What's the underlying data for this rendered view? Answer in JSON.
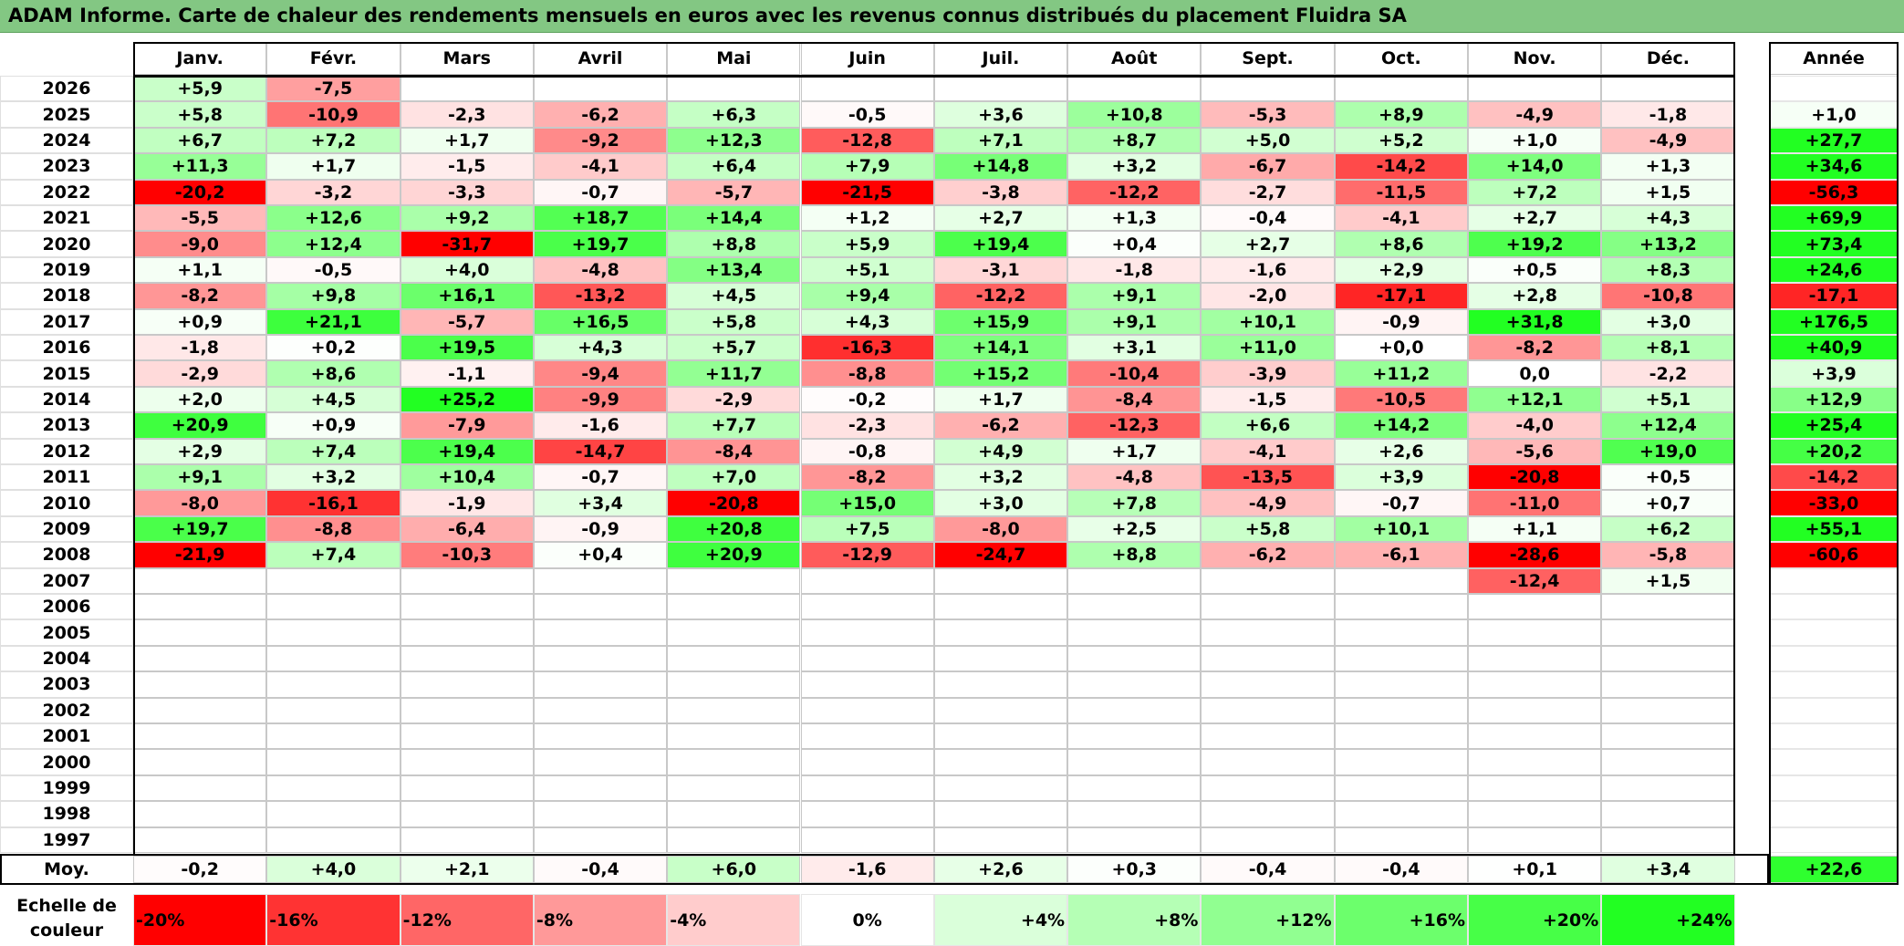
{
  "title": "ADAM Informe. Carte de chaleur des rendements mensuels en euros avec les revenus connus distribués du placement Fluidra SA",
  "chart_data": {
    "type": "heatmap",
    "title": "ADAM Informe. Carte de chaleur des rendements mensuels en euros avec les revenus connus distribués du placement Fluidra SA",
    "months": [
      "Janv.",
      "Févr.",
      "Mars",
      "Avril",
      "Mai",
      "Juin",
      "Juil.",
      "Août",
      "Sept.",
      "Oct.",
      "Nov.",
      "Déc."
    ],
    "year_header": "Année",
    "years": [
      "2026",
      "2025",
      "2024",
      "2023",
      "2022",
      "2021",
      "2020",
      "2019",
      "2018",
      "2017",
      "2016",
      "2015",
      "2014",
      "2013",
      "2012",
      "2011",
      "2010",
      "2009",
      "2008",
      "2007",
      "2006",
      "2005",
      "2004",
      "2003",
      "2002",
      "2001",
      "2000",
      "1999",
      "1998",
      "1997"
    ],
    "values": [
      [
        "+5,9",
        "-7,5",
        "",
        "",
        "",
        "",
        "",
        "",
        "",
        "",
        "",
        ""
      ],
      [
        "+5,8",
        "-10,9",
        "-2,3",
        "-6,2",
        "+6,3",
        "-0,5",
        "+3,6",
        "+10,8",
        "-5,3",
        "+8,9",
        "-4,9",
        "-1,8"
      ],
      [
        "+6,7",
        "+7,2",
        "+1,7",
        "-9,2",
        "+12,3",
        "-12,8",
        "+7,1",
        "+8,7",
        "+5,0",
        "+5,2",
        "+1,0",
        "-4,9"
      ],
      [
        "+11,3",
        "+1,7",
        "-1,5",
        "-4,1",
        "+6,4",
        "+7,9",
        "+14,8",
        "+3,2",
        "-6,7",
        "-14,2",
        "+14,0",
        "+1,3"
      ],
      [
        "-20,2",
        "-3,2",
        "-3,3",
        "-0,7",
        "-5,7",
        "-21,5",
        "-3,8",
        "-12,2",
        "-2,7",
        "-11,5",
        "+7,2",
        "+1,5"
      ],
      [
        "-5,5",
        "+12,6",
        "+9,2",
        "+18,7",
        "+14,4",
        "+1,2",
        "+2,7",
        "+1,3",
        "-0,4",
        "-4,1",
        "+2,7",
        "+4,3"
      ],
      [
        "-9,0",
        "+12,4",
        "-31,7",
        "+19,7",
        "+8,8",
        "+5,9",
        "+19,4",
        "+0,4",
        "+2,7",
        "+8,6",
        "+19,2",
        "+13,2"
      ],
      [
        "+1,1",
        "-0,5",
        "+4,0",
        "-4,8",
        "+13,4",
        "+5,1",
        "-3,1",
        "-1,8",
        "-1,6",
        "+2,9",
        "+0,5",
        "+8,3"
      ],
      [
        "-8,2",
        "+9,8",
        "+16,1",
        "-13,2",
        "+4,5",
        "+9,4",
        "-12,2",
        "+9,1",
        "-2,0",
        "-17,1",
        "+2,8",
        "-10,8"
      ],
      [
        "+0,9",
        "+21,1",
        "-5,7",
        "+16,5",
        "+5,8",
        "+4,3",
        "+15,9",
        "+9,1",
        "+10,1",
        "-0,9",
        "+31,8",
        "+3,0"
      ],
      [
        "-1,8",
        "+0,2",
        "+19,5",
        "+4,3",
        "+5,7",
        "-16,3",
        "+14,1",
        "+3,1",
        "+11,0",
        "+0,0",
        "-8,2",
        "+8,1"
      ],
      [
        "-2,9",
        "+8,6",
        "-1,1",
        "-9,4",
        "+11,7",
        "-8,8",
        "+15,2",
        "-10,4",
        "-3,9",
        "+11,2",
        "0,0",
        "-2,2"
      ],
      [
        "+2,0",
        "+4,5",
        "+25,2",
        "-9,9",
        "-2,9",
        "-0,2",
        "+1,7",
        "-8,4",
        "-1,5",
        "-10,5",
        "+12,1",
        "+5,1"
      ],
      [
        "+20,9",
        "+0,9",
        "-7,9",
        "-1,6",
        "+7,7",
        "-2,3",
        "-6,2",
        "-12,3",
        "+6,6",
        "+14,2",
        "-4,0",
        "+12,4"
      ],
      [
        "+2,9",
        "+7,4",
        "+19,4",
        "-14,7",
        "-8,4",
        "-0,8",
        "+4,9",
        "+1,7",
        "-4,1",
        "+2,6",
        "-5,6",
        "+19,0"
      ],
      [
        "+9,1",
        "+3,2",
        "+10,4",
        "-0,7",
        "+7,0",
        "-8,2",
        "+3,2",
        "-4,8",
        "-13,5",
        "+3,9",
        "-20,8",
        "+0,5"
      ],
      [
        "-8,0",
        "-16,1",
        "-1,9",
        "+3,4",
        "-20,8",
        "+15,0",
        "+3,0",
        "+7,8",
        "-4,9",
        "-0,7",
        "-11,0",
        "+0,7"
      ],
      [
        "+19,7",
        "-8,8",
        "-6,4",
        "-0,9",
        "+20,8",
        "+7,5",
        "-8,0",
        "+2,5",
        "+5,8",
        "+10,1",
        "+1,1",
        "+6,2"
      ],
      [
        "-21,9",
        "+7,4",
        "-10,3",
        "+0,4",
        "+20,9",
        "-12,9",
        "-24,7",
        "+8,8",
        "-6,2",
        "-6,1",
        "-28,6",
        "-5,8"
      ],
      [
        "",
        "",
        "",
        "",
        "",
        "",
        "",
        "",
        "",
        "",
        "-12,4",
        "+1,5"
      ],
      [
        "",
        "",
        "",
        "",
        "",
        "",
        "",
        "",
        "",
        "",
        "",
        ""
      ],
      [
        "",
        "",
        "",
        "",
        "",
        "",
        "",
        "",
        "",
        "",
        "",
        ""
      ],
      [
        "",
        "",
        "",
        "",
        "",
        "",
        "",
        "",
        "",
        "",
        "",
        ""
      ],
      [
        "",
        "",
        "",
        "",
        "",
        "",
        "",
        "",
        "",
        "",
        "",
        ""
      ],
      [
        "",
        "",
        "",
        "",
        "",
        "",
        "",
        "",
        "",
        "",
        "",
        ""
      ],
      [
        "",
        "",
        "",
        "",
        "",
        "",
        "",
        "",
        "",
        "",
        "",
        ""
      ],
      [
        "",
        "",
        "",
        "",
        "",
        "",
        "",
        "",
        "",
        "",
        "",
        ""
      ],
      [
        "",
        "",
        "",
        "",
        "",
        "",
        "",
        "",
        "",
        "",
        "",
        ""
      ],
      [
        "",
        "",
        "",
        "",
        "",
        "",
        "",
        "",
        "",
        "",
        "",
        ""
      ],
      [
        "",
        "",
        "",
        "",
        "",
        "",
        "",
        "",
        "",
        "",
        "",
        ""
      ]
    ],
    "annual": [
      "",
      "+1,0",
      "+27,7",
      "+34,6",
      "-56,3",
      "+69,9",
      "+73,4",
      "+24,6",
      "-17,1",
      "+176,5",
      "+40,9",
      "+3,9",
      "+12,9",
      "+25,4",
      "+20,2",
      "-14,2",
      "-33,0",
      "+55,1",
      "-60,6",
      "",
      "",
      "",
      "",
      "",
      "",
      "",
      "",
      "",
      "",
      ""
    ],
    "avg_label": "Moy.",
    "averages": [
      "-0,2",
      "+4,0",
      "+2,1",
      "-0,4",
      "+6,0",
      "-1,6",
      "+2,6",
      "+0,3",
      "-0,4",
      "-0,4",
      "+0,1",
      "+3,4"
    ],
    "avg_annual": "+22,6",
    "scale_label": "Echelle de couleur",
    "scale": [
      "-20%",
      "-16%",
      "-12%",
      "-8%",
      "-4%",
      "0%",
      "+4%",
      "+8%",
      "+12%",
      "+16%",
      "+20%",
      "+24%"
    ],
    "scale_values": [
      -20,
      -16,
      -12,
      -8,
      -4,
      0,
      4,
      8,
      12,
      16,
      20,
      24
    ],
    "colors": {
      "negative_max": "#ff0000",
      "neutral": "#ffffff",
      "positive_max": "#22ff22"
    }
  }
}
